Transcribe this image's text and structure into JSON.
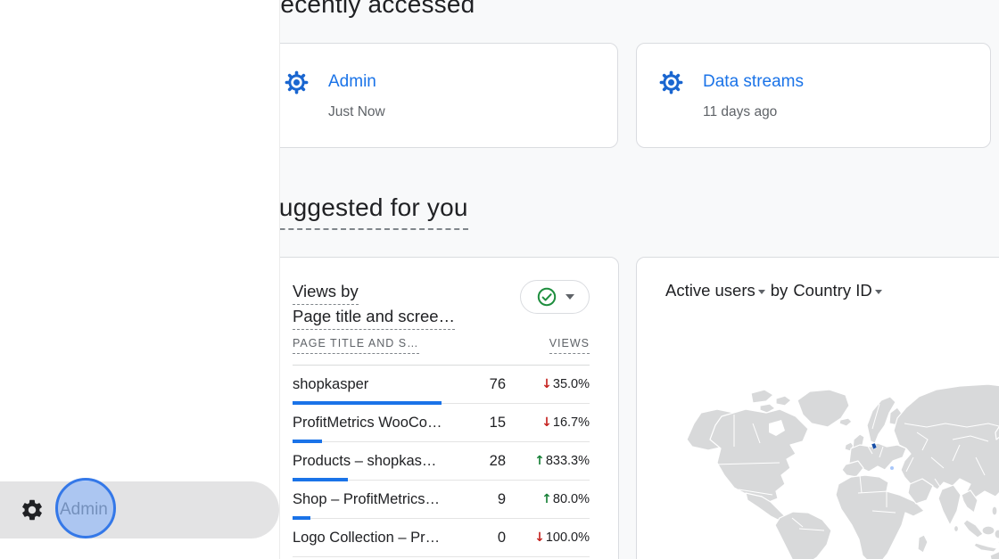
{
  "colors": {
    "accent_blue": "#1a73e8",
    "bar_blue": "#1a73e8",
    "positive_green": "#188038",
    "negative_red": "#c5221f",
    "click_highlight_blue": "#3478e8",
    "map_highlight_navy": "#174ea6",
    "map_land_gray": "#d8d9da"
  },
  "headings": {
    "recently_accessed": "Recently accessed",
    "suggested_for_you": "Suggested for you"
  },
  "recent_cards": [
    {
      "icon": "gear-icon",
      "title": "Admin",
      "subtitle": "Just Now"
    },
    {
      "icon": "gear-icon",
      "title": "Data streams",
      "subtitle": "11 days ago"
    }
  ],
  "views_card": {
    "title_line1": "Views by",
    "title_line2": "Page title and scree…",
    "quality_icon": "check-circle-icon",
    "columns": {
      "dimension": "PAGE TITLE AND S…",
      "metric": "VIEWS"
    },
    "rows": [
      {
        "label": "shopkasper",
        "views": "76",
        "change": "35.0%",
        "direction": "down"
      },
      {
        "label": "ProfitMetrics WooCo…",
        "views": "15",
        "change": "16.7%",
        "direction": "down"
      },
      {
        "label": "Products – shopkas…",
        "views": "28",
        "change": "833.3%",
        "direction": "up"
      },
      {
        "label": "Shop – ProfitMetrics…",
        "views": "9",
        "change": "80.0%",
        "direction": "up"
      },
      {
        "label": "Logo Collection – Pr…",
        "views": "0",
        "change": "100.0%",
        "direction": "down"
      }
    ]
  },
  "map_card": {
    "metric_label": "Active users",
    "connector": "by",
    "dimension_label": "Country ID",
    "highlighted_country": "Denmark"
  },
  "nav": {
    "icon": "gear-icon",
    "admin_label": "Admin"
  }
}
